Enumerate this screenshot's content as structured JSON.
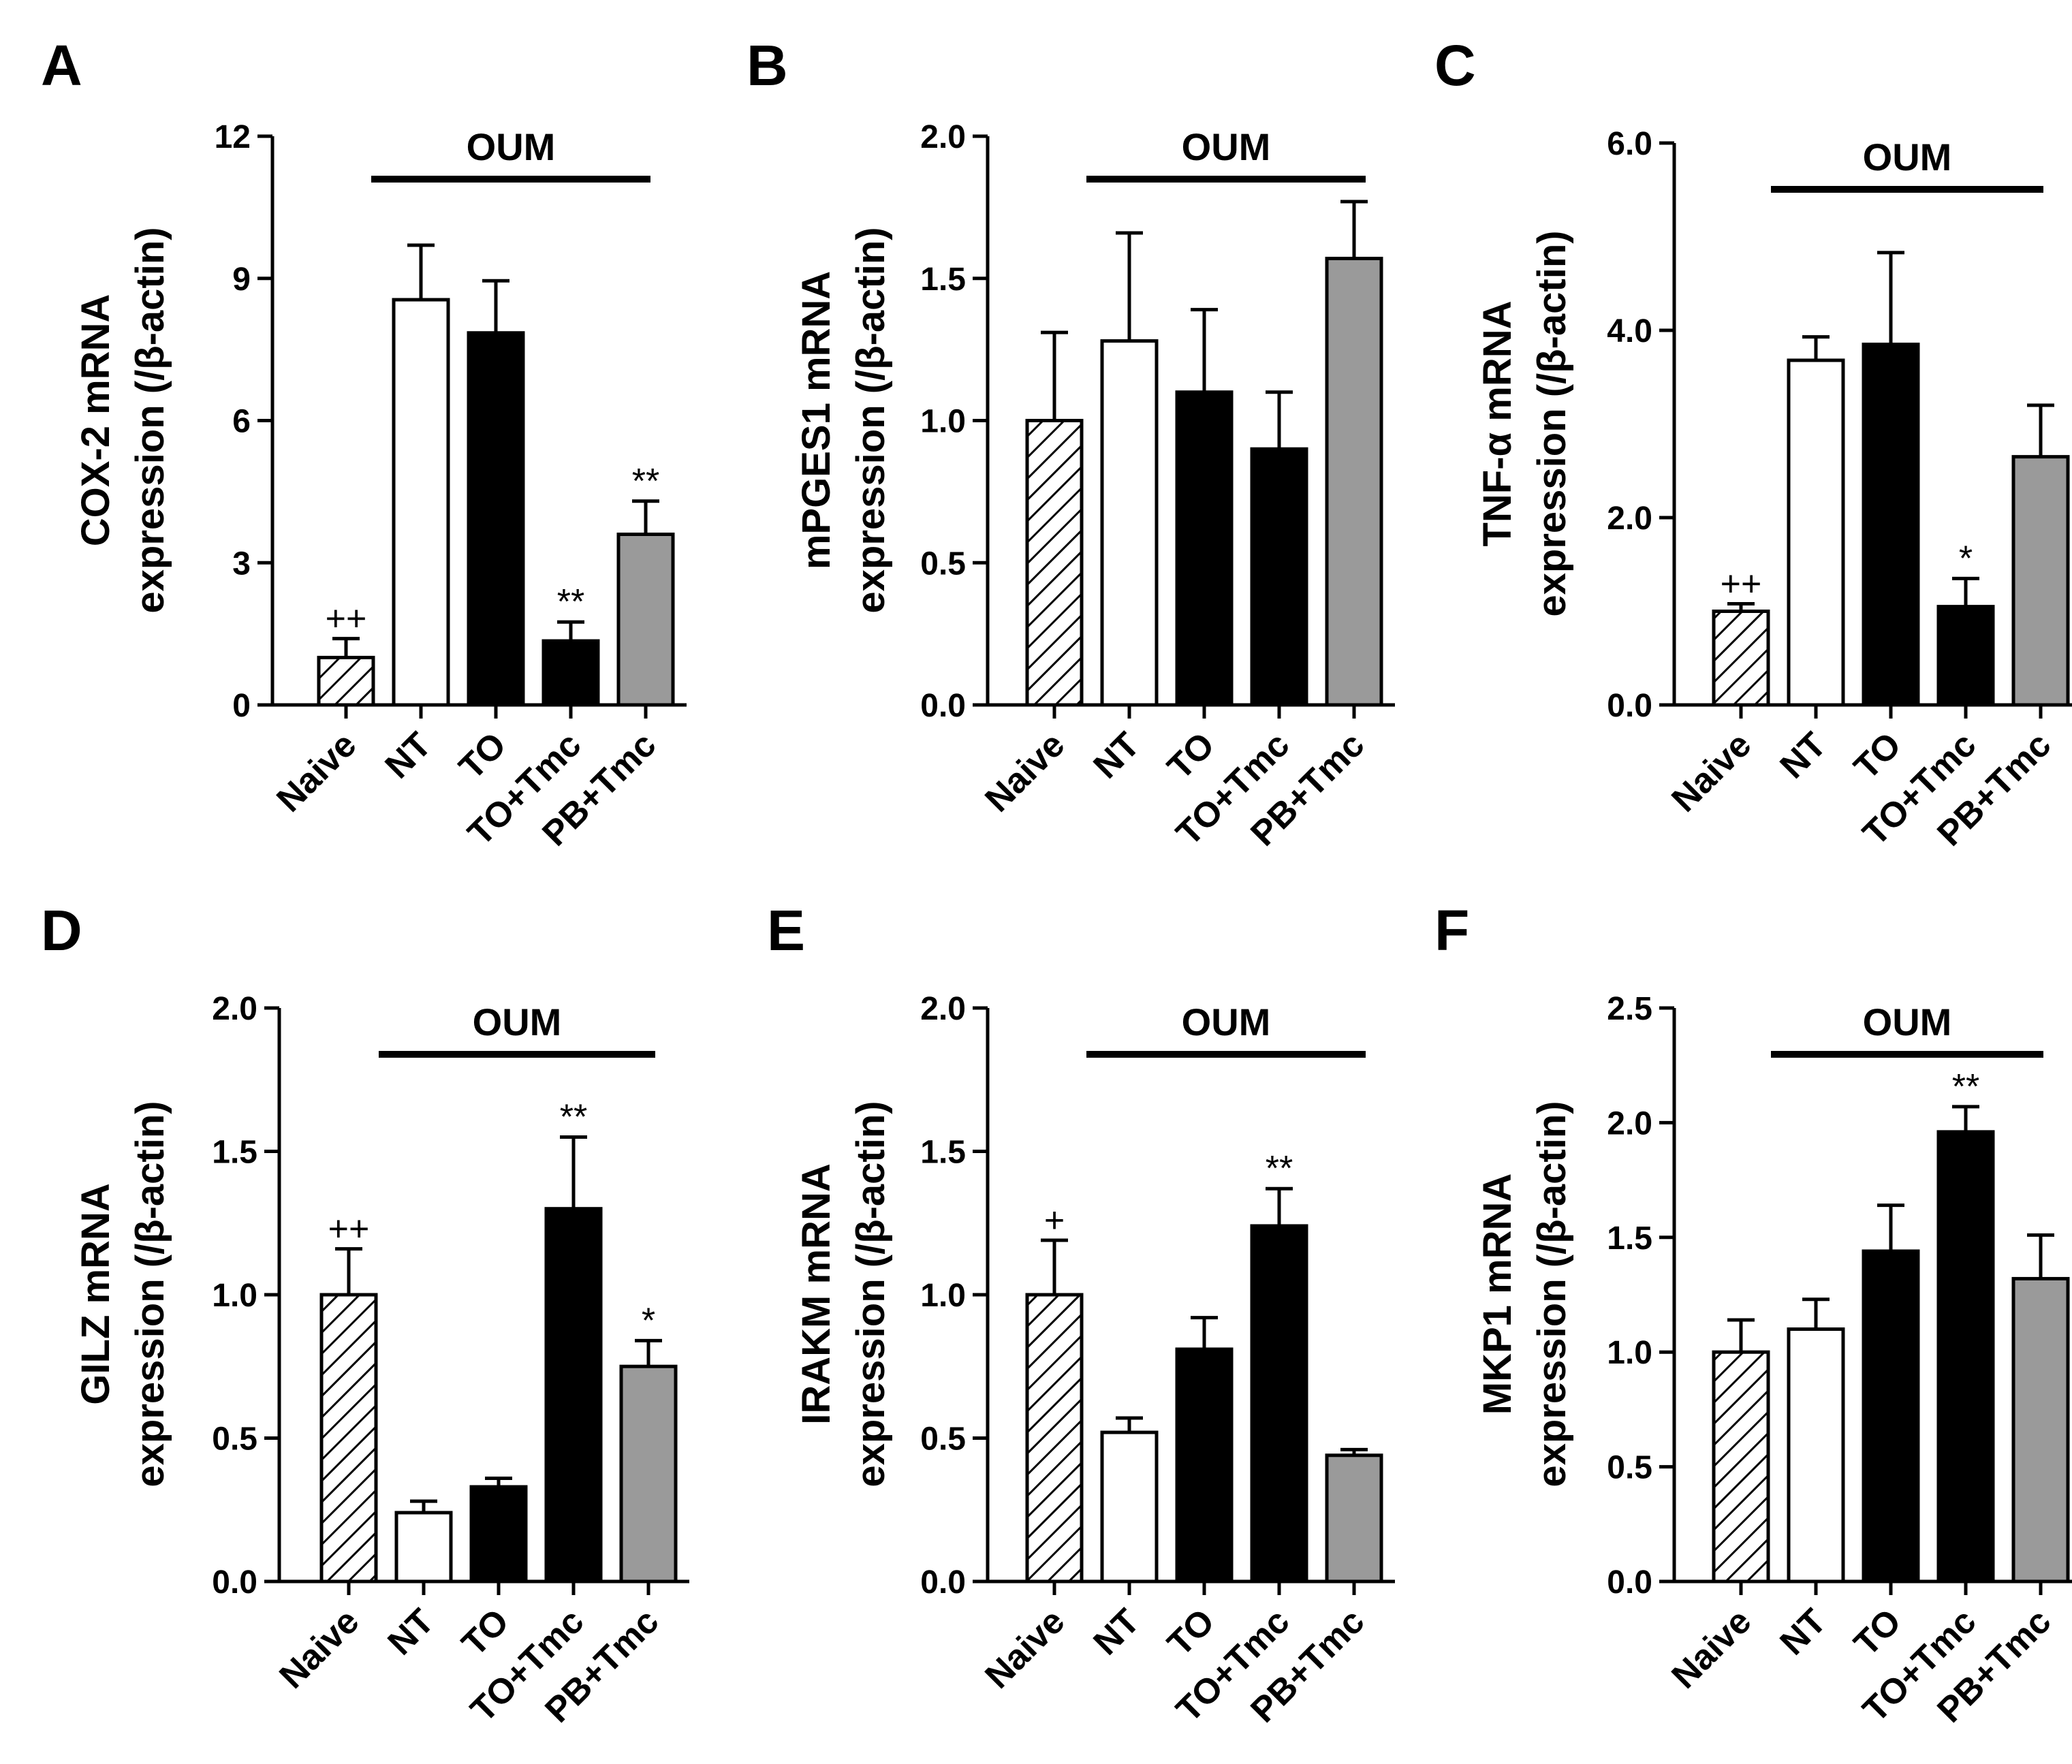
{
  "categories": [
    "Naive",
    "NT",
    "TO",
    "TO+Tmc",
    "PB+Tmc"
  ],
  "styles": {
    "bar_colors": [
      "hatch",
      "#ffffff",
      "#000000",
      "#000000",
      "#9a9a9a"
    ],
    "stroke": "#000000",
    "hatch_line": "#000000",
    "background": "#ffffff"
  },
  "chart_data": [
    {
      "type": "bar",
      "panel": "A",
      "ylabel": [
        "COX-2 mRNA",
        "expression (/β-actin)"
      ],
      "ylim": [
        0,
        12
      ],
      "ticks": [
        0,
        3,
        6,
        9,
        12
      ],
      "tick_labels": [
        "0",
        "3",
        "6",
        "9",
        "12"
      ],
      "group_label": "OUM",
      "categories": [
        "Naive",
        "NT",
        "TO",
        "TO+Tmc",
        "PB+Tmc"
      ],
      "values": [
        1.0,
        8.55,
        7.85,
        1.35,
        3.6
      ],
      "errors": [
        0.4,
        1.15,
        1.1,
        0.4,
        0.7
      ],
      "annotations": [
        "++",
        "",
        "",
        "**",
        "**"
      ]
    },
    {
      "type": "bar",
      "panel": "B",
      "ylabel": [
        "mPGES1 mRNA",
        "expression (/β-actin)"
      ],
      "ylim": [
        0,
        2.0
      ],
      "ticks": [
        0,
        0.5,
        1.0,
        1.5,
        2.0
      ],
      "tick_labels": [
        "0.0",
        "0.5",
        "1.0",
        "1.5",
        "2.0"
      ],
      "group_label": "OUM",
      "categories": [
        "Naive",
        "NT",
        "TO",
        "TO+Tmc",
        "PB+Tmc"
      ],
      "values": [
        1.0,
        1.28,
        1.1,
        0.9,
        1.57
      ],
      "errors": [
        0.31,
        0.38,
        0.29,
        0.2,
        0.2
      ],
      "annotations": [
        "",
        "",
        "",
        "",
        ""
      ]
    },
    {
      "type": "bar",
      "panel": "C",
      "ylabel": [
        "TNF-α mRNA",
        "expression (/β-actin)"
      ],
      "ylim": [
        0,
        6.0
      ],
      "ticks": [
        0,
        2.0,
        4.0,
        6.0
      ],
      "tick_labels": [
        "0.0",
        "2.0",
        "4.0",
        "6.0"
      ],
      "group_label": "OUM",
      "categories": [
        "Naive",
        "NT",
        "TO",
        "TO+Tmc",
        "PB+Tmc"
      ],
      "values": [
        1.0,
        3.68,
        3.85,
        1.05,
        2.65
      ],
      "errors": [
        0.08,
        0.25,
        0.98,
        0.3,
        0.55
      ],
      "annotations": [
        "++",
        "",
        "",
        "*",
        ""
      ]
    },
    {
      "type": "bar",
      "panel": "D",
      "ylabel": [
        "GILZ mRNA",
        "expression (/β-actin)"
      ],
      "ylim": [
        0,
        2.0
      ],
      "ticks": [
        0,
        0.5,
        1.0,
        1.5,
        2.0
      ],
      "tick_labels": [
        "0.0",
        "0.5",
        "1.0",
        "1.5",
        "2.0"
      ],
      "group_label": "OUM",
      "categories": [
        "Naive",
        "NT",
        "TO",
        "TO+Tmc",
        "PB+Tmc"
      ],
      "values": [
        1.0,
        0.24,
        0.33,
        1.3,
        0.75
      ],
      "errors": [
        0.16,
        0.04,
        0.03,
        0.25,
        0.09
      ],
      "annotations": [
        "++",
        "",
        "",
        "**",
        "*"
      ]
    },
    {
      "type": "bar",
      "panel": "E",
      "ylabel": [
        "IRAKM mRNA",
        "expression (/β-actin)"
      ],
      "ylim": [
        0,
        2.0
      ],
      "ticks": [
        0,
        0.5,
        1.0,
        1.5,
        2.0
      ],
      "tick_labels": [
        "0.0",
        "0.5",
        "1.0",
        "1.5",
        "2.0"
      ],
      "group_label": "OUM",
      "categories": [
        "Naive",
        "NT",
        "TO",
        "TO+Tmc",
        "PB+Tmc"
      ],
      "values": [
        1.0,
        0.52,
        0.81,
        1.24,
        0.44
      ],
      "errors": [
        0.19,
        0.05,
        0.11,
        0.13,
        0.02
      ],
      "annotations": [
        "+",
        "",
        "",
        "**",
        ""
      ]
    },
    {
      "type": "bar",
      "panel": "F",
      "ylabel": [
        "MKP1 mRNA",
        "expression (/β-actin)"
      ],
      "ylim": [
        0,
        2.5
      ],
      "ticks": [
        0,
        0.5,
        1.0,
        1.5,
        2.0,
        2.5
      ],
      "tick_labels": [
        "0.0",
        "0.5",
        "1.0",
        "1.5",
        "2.0",
        "2.5"
      ],
      "group_label": "OUM",
      "categories": [
        "Naive",
        "NT",
        "TO",
        "TO+Tmc",
        "PB+Tmc"
      ],
      "values": [
        1.0,
        1.1,
        1.44,
        1.96,
        1.32
      ],
      "errors": [
        0.14,
        0.13,
        0.2,
        0.11,
        0.19
      ],
      "annotations": [
        "",
        "",
        "",
        "**",
        ""
      ]
    }
  ]
}
